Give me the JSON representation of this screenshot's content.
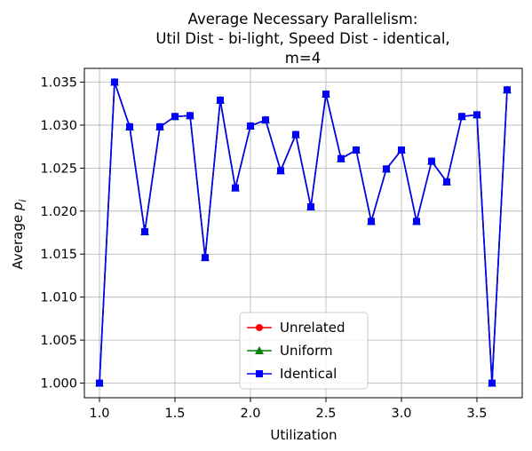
{
  "chart_data": {
    "type": "line",
    "title_lines": [
      "Average Necessary Parallelism:",
      "Util Dist - bi-light, Speed Dist - identical,",
      "m=4"
    ],
    "xlabel": "Utilization",
    "ylabel_main": "Average ",
    "ylabel_var": "p",
    "ylabel_sub": "i",
    "xlim": [
      0.9,
      3.8
    ],
    "ylim": [
      0.9983,
      1.0366
    ],
    "x_ticks": [
      1.0,
      1.5,
      2.0,
      2.5,
      3.0,
      3.5
    ],
    "x_tick_labels": [
      "1.0",
      "1.5",
      "2.0",
      "2.5",
      "3.0",
      "3.5"
    ],
    "y_ticks": [
      1.0,
      1.005,
      1.01,
      1.015,
      1.02,
      1.025,
      1.03,
      1.035
    ],
    "y_tick_labels": [
      "1.000",
      "1.005",
      "1.010",
      "1.015",
      "1.020",
      "1.025",
      "1.030",
      "1.035"
    ],
    "grid": true,
    "legend_position": "lower-center",
    "x": [
      1.0,
      1.1,
      1.2,
      1.3,
      1.4,
      1.5,
      1.6,
      1.7,
      1.8,
      1.9,
      2.0,
      2.1,
      2.2,
      2.3,
      2.4,
      2.5,
      2.6,
      2.7,
      2.8,
      2.9,
      3.0,
      3.1,
      3.2,
      3.3,
      3.4,
      3.5,
      3.6,
      3.7
    ],
    "series": [
      {
        "name": "Unrelated",
        "color": "#ff0000",
        "marker": "circle",
        "values": [
          1.0,
          1.035,
          1.0298,
          1.0176,
          1.0298,
          1.031,
          1.0311,
          1.0146,
          1.0329,
          1.0227,
          1.0299,
          1.0306,
          1.0247,
          1.0289,
          1.0205,
          1.0336,
          1.0261,
          1.0271,
          1.0188,
          1.0249,
          1.0271,
          1.0188,
          1.0258,
          1.0234,
          1.031,
          1.0312,
          1.0,
          1.0341
        ]
      },
      {
        "name": "Uniform",
        "color": "#008000",
        "marker": "triangle",
        "values": [
          1.0,
          1.035,
          1.0298,
          1.0176,
          1.0298,
          1.031,
          1.0311,
          1.0146,
          1.0329,
          1.0227,
          1.0299,
          1.0306,
          1.0247,
          1.0289,
          1.0205,
          1.0336,
          1.0261,
          1.0271,
          1.0188,
          1.0249,
          1.0271,
          1.0188,
          1.0258,
          1.0234,
          1.031,
          1.0312,
          1.0,
          1.0341
        ]
      },
      {
        "name": "Identical",
        "color": "#0000ff",
        "marker": "square",
        "values": [
          1.0,
          1.035,
          1.0298,
          1.0176,
          1.0298,
          1.031,
          1.0311,
          1.0146,
          1.0329,
          1.0227,
          1.0299,
          1.0306,
          1.0247,
          1.0289,
          1.0205,
          1.0336,
          1.0261,
          1.0271,
          1.0188,
          1.0249,
          1.0271,
          1.0188,
          1.0258,
          1.0234,
          1.031,
          1.0312,
          1.0,
          1.0341
        ]
      }
    ]
  }
}
